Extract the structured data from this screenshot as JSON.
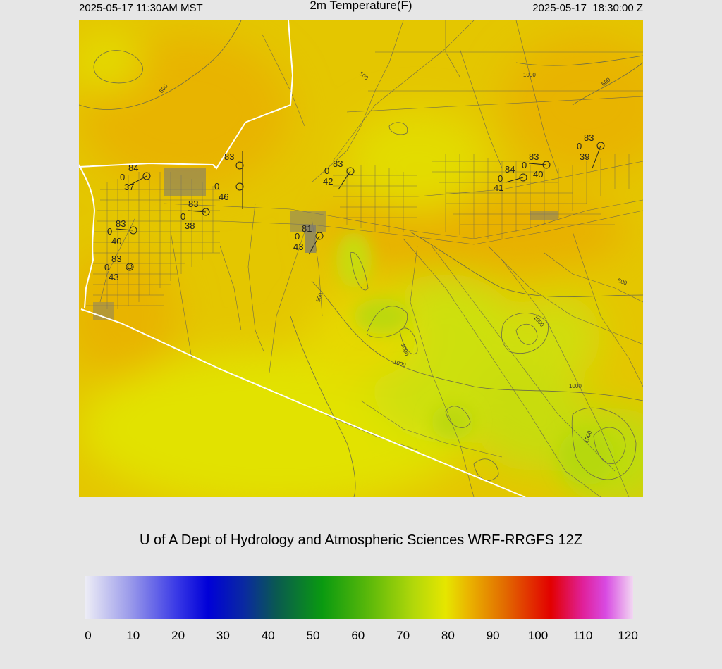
{
  "header": {
    "local_time": "2025-05-17 11:30AM MST",
    "title": "2m Temperature(F)",
    "utc_time": "2025-05-17_18:30:00 Z"
  },
  "credit": "U of A Dept of Hydrology and Atmospheric Sciences WRF-RRGFS 12Z",
  "colorbar": {
    "ticks": [
      "0",
      "10",
      "20",
      "30",
      "40",
      "50",
      "60",
      "70",
      "80",
      "90",
      "100",
      "110",
      "120"
    ],
    "stops": [
      {
        "v": 0,
        "c": "#eeeef6"
      },
      {
        "v": 10,
        "c": "#9a9aea"
      },
      {
        "v": 20,
        "c": "#3a3ae6"
      },
      {
        "v": 27,
        "c": "#0000d8"
      },
      {
        "v": 35,
        "c": "#0a2aa0"
      },
      {
        "v": 42,
        "c": "#0a5a50"
      },
      {
        "v": 52,
        "c": "#0a9a10"
      },
      {
        "v": 62,
        "c": "#5ab80a"
      },
      {
        "v": 72,
        "c": "#b2d80a"
      },
      {
        "v": 79,
        "c": "#e6e600"
      },
      {
        "v": 84,
        "c": "#eab400"
      },
      {
        "v": 92,
        "c": "#e26a00"
      },
      {
        "v": 102,
        "c": "#e20000"
      },
      {
        "v": 109,
        "c": "#e0209a"
      },
      {
        "v": 114,
        "c": "#d84ae2"
      },
      {
        "v": 120,
        "c": "#f2d8f2"
      }
    ]
  },
  "contour_labels": [
    "500",
    "500",
    "1000",
    "500",
    "500",
    "1000",
    "1000",
    "1000",
    "500",
    "1500",
    "1000"
  ],
  "stations": [
    {
      "id": "s1",
      "temp": "84",
      "wind": "0",
      "dew": "37"
    },
    {
      "id": "s2",
      "temp": "83",
      "wind": "0",
      "dew": "40"
    },
    {
      "id": "s3",
      "temp": "83",
      "wind": "0",
      "dew": "43"
    },
    {
      "id": "s4",
      "temp": "83",
      "wind": "0",
      "dew": "38"
    },
    {
      "id": "s5",
      "temp": "83",
      "wind": "0",
      "dew": "46"
    },
    {
      "id": "s6",
      "temp": "83",
      "wind": "0",
      "dew": "42"
    },
    {
      "id": "s7",
      "temp": "81",
      "wind": "0",
      "dew": "43"
    },
    {
      "id": "s8",
      "temp": "84",
      "wind": "0",
      "dew": "41"
    },
    {
      "id": "s9",
      "temp": "83",
      "wind": "0",
      "dew": "40"
    },
    {
      "id": "s10",
      "temp": "83",
      "wind": "0",
      "dew": "39"
    }
  ],
  "colors": {
    "background": "#e6e6e6",
    "field_base": "#e6cc00",
    "field_warm": "#e6b000",
    "field_cool": "#c6dc10",
    "roads": "#555555",
    "border": "#ffffff"
  }
}
